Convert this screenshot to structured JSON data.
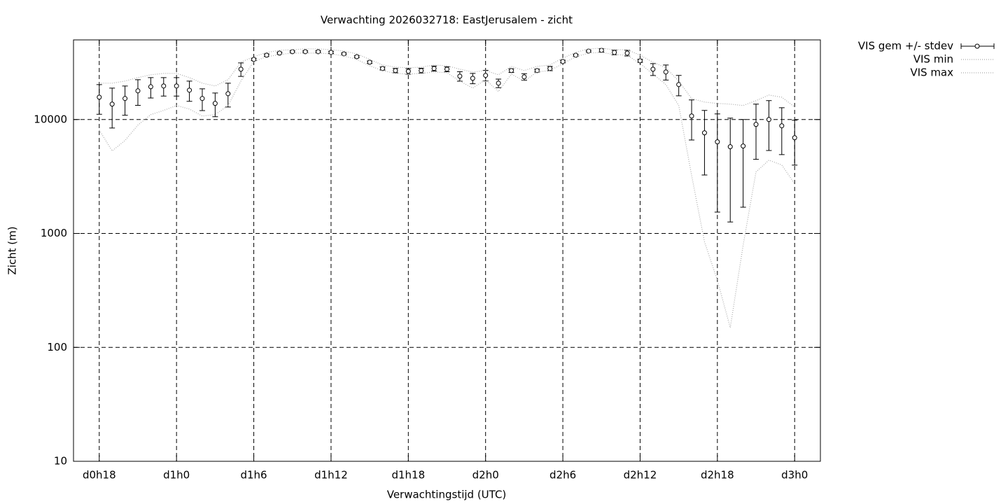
{
  "chart_data": {
    "type": "errorbar-line",
    "title": "Verwachting 2026032718: EastJerusalem - zicht",
    "x_label": "Verwachtingstijd (UTC)",
    "y_label": "Zicht (m)",
    "log_y": true,
    "grid": true,
    "legend": "outside-top-right",
    "xlim": [
      16,
      74
    ],
    "ylim": [
      10,
      50000
    ],
    "xticks": [
      {
        "value": 18,
        "label": "d0h18"
      },
      {
        "value": 24,
        "label": "d1h0"
      },
      {
        "value": 30,
        "label": "d1h6"
      },
      {
        "value": 36,
        "label": "d1h12"
      },
      {
        "value": 42,
        "label": "d1h18"
      },
      {
        "value": 48,
        "label": "d2h0"
      },
      {
        "value": 54,
        "label": "d2h6"
      },
      {
        "value": 60,
        "label": "d2h12"
      },
      {
        "value": 66,
        "label": "d2h18"
      },
      {
        "value": 72,
        "label": "d3h0"
      }
    ],
    "yticks": [
      10,
      100,
      1000,
      10000
    ],
    "x": [
      18,
      19,
      20,
      21,
      22,
      23,
      24,
      25,
      26,
      27,
      28,
      29,
      30,
      31,
      32,
      33,
      34,
      35,
      36,
      37,
      38,
      39,
      40,
      41,
      42,
      43,
      44,
      45,
      46,
      47,
      48,
      49,
      50,
      51,
      52,
      53,
      54,
      55,
      56,
      57,
      58,
      59,
      60,
      61,
      62,
      63,
      64,
      65,
      66,
      67,
      68,
      69,
      70,
      71,
      72
    ],
    "series": [
      {
        "name": "VIS gem +/- stdev",
        "color": "#000000",
        "values": [
          15700,
          13650,
          15300,
          17850,
          19400,
          19700,
          19700,
          18100,
          15300,
          13840,
          16860,
          27660,
          33700,
          36700,
          38300,
          39400,
          39400,
          39400,
          38800,
          37700,
          35600,
          31850,
          28050,
          26900,
          26500,
          26900,
          28050,
          27660,
          24000,
          23000,
          24400,
          20850,
          26900,
          23670,
          26900,
          28050,
          32300,
          36700,
          39900,
          40500,
          38800,
          38300,
          32750,
          27660,
          26150,
          20270,
          10730,
          7640,
          6370,
          5770,
          5850,
          9060,
          10000,
          8810,
          6920
        ],
        "stdev": [
          4570,
          5230,
          4400,
          4520,
          3940,
          3640,
          3640,
          3650,
          3320,
          3260,
          3990,
          3740,
          800,
          900,
          700,
          700,
          700,
          800,
          900,
          700,
          700,
          800,
          900,
          1200,
          1500,
          1300,
          1400,
          1400,
          2300,
          2400,
          2600,
          1800,
          1000,
          1600,
          800,
          1200,
          900,
          700,
          700,
          1400,
          1800,
          2200,
          1000,
          3300,
          3950,
          4130,
          4120,
          4380,
          4830,
          4510,
          4150,
          4590,
          4650,
          3890,
          2940
        ]
      },
      {
        "name": "VIS min",
        "color": "#aaaaaa",
        "dash": "dotted",
        "values": [
          8090,
          5300,
          6550,
          8930,
          11040,
          12020,
          13270,
          12360,
          10730,
          11040,
          13270,
          21750,
          32300,
          35600,
          37200,
          38300,
          38300,
          38300,
          37700,
          36150,
          33700,
          29650,
          26900,
          25400,
          25060,
          25400,
          26150,
          25760,
          21750,
          18880,
          22370,
          17600,
          25060,
          21750,
          26150,
          26900,
          30960,
          35600,
          38300,
          38800,
          37200,
          36700,
          30960,
          25060,
          20270,
          13270,
          3230,
          844,
          388,
          149,
          787,
          3470,
          4400,
          3990,
          2730
        ]
      },
      {
        "name": "VIS max",
        "color": "#aaaaaa",
        "dash": "dotted",
        "values": [
          20850,
          20850,
          21750,
          23340,
          24700,
          25400,
          25400,
          23340,
          20850,
          19700,
          22370,
          31850,
          35600,
          38800,
          40500,
          41000,
          41700,
          41700,
          41000,
          39900,
          37700,
          33700,
          30100,
          28840,
          28450,
          28840,
          30100,
          29650,
          27660,
          26150,
          26900,
          24700,
          29260,
          26900,
          29260,
          30100,
          34650,
          38800,
          41700,
          42270,
          41000,
          41000,
          36700,
          31850,
          28450,
          21750,
          15280,
          14230,
          13840,
          13650,
          13270,
          14650,
          16400,
          15700,
          12890
        ]
      }
    ]
  }
}
